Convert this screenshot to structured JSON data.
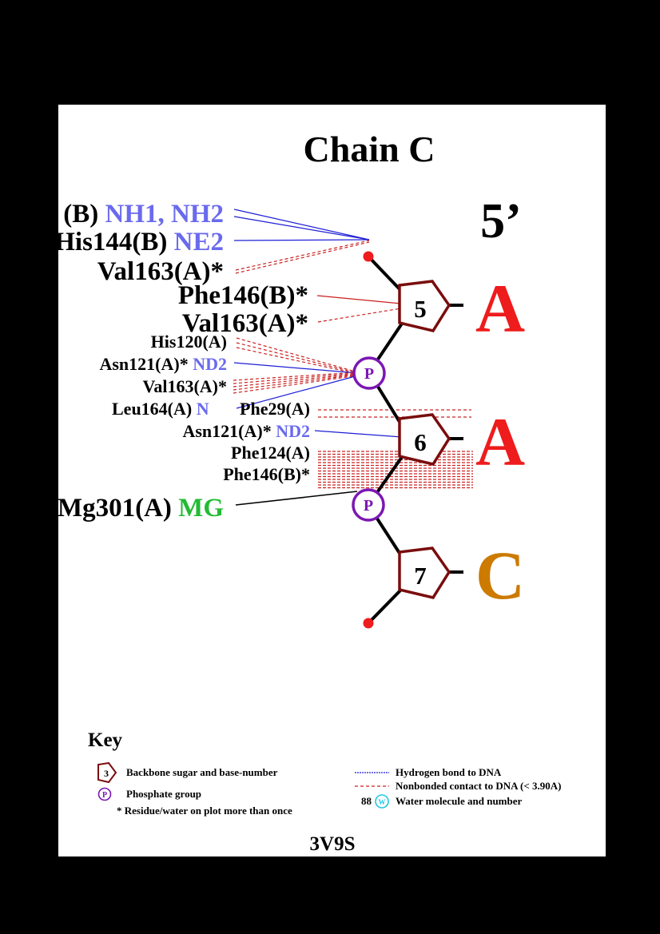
{
  "title": "Chain C",
  "strand_end": "5’",
  "pdb_id": "3V9S",
  "colors": {
    "black": "#000000",
    "sugar": "#7a0d0d",
    "phosphate": "#7b17b3",
    "atom_blue": "#6a6aee",
    "mg_green": "#22bb33",
    "base_A": "#ee1c1c",
    "base_C": "#cc7a00",
    "hbond": "#1f1fd6",
    "nonbond": "#cc2020",
    "water": "#23c8e0"
  },
  "nucleotides": [
    {
      "number": "5",
      "base": "A"
    },
    {
      "number": "6",
      "base": "A"
    },
    {
      "number": "7",
      "base": "C"
    }
  ],
  "phosphates": [
    {
      "label": "P"
    },
    {
      "label": "P"
    }
  ],
  "residues": [
    {
      "res": "(B)",
      "atom": "NH1, NH2",
      "contact": "hbond"
    },
    {
      "res": "His144(B)",
      "atom": "NE2",
      "contact": "hbond"
    },
    {
      "res": "Val163(A)*",
      "atom": "",
      "contact": "nonbond"
    },
    {
      "res": "Phe146(B)*",
      "atom": "",
      "contact": "nonbond"
    },
    {
      "res": "Val163(A)*",
      "atom": "",
      "contact": "nonbond"
    },
    {
      "res": "His120(A)",
      "atom": "",
      "contact": "nonbond"
    },
    {
      "res": "Asn121(A)*",
      "atom": "ND2",
      "contact": "hbond"
    },
    {
      "res": "Val163(A)*",
      "atom": "",
      "contact": "nonbond"
    },
    {
      "res": "Leu164(A)",
      "atom": "N",
      "contact": "hbond"
    },
    {
      "res": "Phe29(A)",
      "atom": "",
      "contact": "nonbond"
    },
    {
      "res": "Asn121(A)*",
      "atom": "ND2",
      "contact": "hbond"
    },
    {
      "res": "Phe124(A)",
      "atom": "",
      "contact": "nonbond"
    },
    {
      "res": "Phe146(B)*",
      "atom": "",
      "contact": "nonbond"
    },
    {
      "res": "Mg301(A)",
      "atom": "MG",
      "contact": "metal"
    }
  ],
  "key": {
    "title": "Key",
    "sugar_number": "3",
    "sugar_text": "Backbone sugar and base-number",
    "phosphate_symbol": "P",
    "phosphate_text": "Phosphate group",
    "star_text": "* Residue/water on plot more than once",
    "hbond_text": "Hydrogen bond to DNA",
    "nonbond_text": "Nonbonded contact to DNA (< 3.90A)",
    "water_number": "88",
    "water_symbol": "W",
    "water_text": "Water molecule and number"
  }
}
